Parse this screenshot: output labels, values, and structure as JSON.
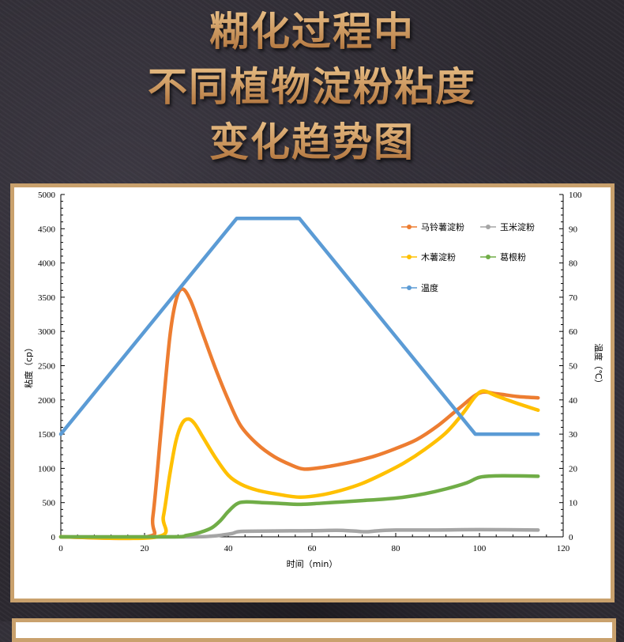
{
  "title": {
    "lines": [
      "糊化过程中",
      "不同植物淀粉粘度",
      "变化趋势图"
    ]
  },
  "chart_data": {
    "type": "line",
    "xlabel": "时间（min）",
    "ylabel": "粘度（cp）",
    "y2label": "温度（℃）",
    "xlim": [
      0,
      120
    ],
    "ylim": [
      0,
      5000
    ],
    "y2lim": [
      0,
      100
    ],
    "xticks": [
      0,
      20,
      40,
      60,
      80,
      100,
      120
    ],
    "yticks": [
      0,
      500,
      1000,
      1500,
      2000,
      2500,
      3000,
      3500,
      4000,
      4500,
      5000
    ],
    "y2ticks": [
      0,
      10,
      20,
      30,
      40,
      50,
      60,
      70,
      80,
      90,
      100
    ],
    "grid": false,
    "legend_placement": "top-right",
    "series": [
      {
        "name": "马铃薯淀粉",
        "color": "#ed7d31",
        "axis": "left",
        "x": [
          0,
          20.5,
          22,
          24,
          26,
          27.5,
          29,
          31,
          34,
          37,
          40,
          43,
          47,
          51,
          55,
          58,
          62,
          66,
          70,
          75,
          80,
          85,
          90,
          95,
          100,
          104,
          109,
          114
        ],
        "y": [
          0,
          0,
          300,
          1600,
          2900,
          3450,
          3620,
          3450,
          2950,
          2450,
          2000,
          1620,
          1350,
          1170,
          1050,
          990,
          1010,
          1050,
          1100,
          1180,
          1290,
          1420,
          1620,
          1870,
          2100,
          2090,
          2050,
          2030
        ]
      },
      {
        "name": "玉米淀粉",
        "color": "#a5a5a5",
        "axis": "left",
        "x": [
          0,
          30,
          36,
          39,
          41,
          43,
          50,
          60,
          66,
          70,
          73,
          76,
          80,
          90,
          100,
          114
        ],
        "y": [
          0,
          0,
          10,
          30,
          50,
          80,
          85,
          90,
          95,
          85,
          75,
          90,
          100,
          100,
          105,
          100
        ]
      },
      {
        "name": "木薯淀粉",
        "color": "#ffc000",
        "axis": "left",
        "x": [
          0,
          23,
          24.5,
          26,
          27.5,
          29,
          30.5,
          32,
          34,
          37,
          40,
          43,
          47,
          52,
          57,
          62,
          67,
          72,
          77,
          82,
          87,
          92,
          96,
          99,
          101,
          104,
          109,
          114
        ],
        "y": [
          0,
          0,
          300,
          900,
          1400,
          1660,
          1720,
          1650,
          1450,
          1150,
          900,
          770,
          680,
          620,
          580,
          610,
          680,
          780,
          920,
          1080,
          1280,
          1520,
          1800,
          2050,
          2130,
          2060,
          1950,
          1850
        ]
      },
      {
        "name": "葛根粉",
        "color": "#70ad47",
        "axis": "left",
        "x": [
          0,
          26,
          30,
          33,
          36,
          38,
          40,
          42,
          44,
          48,
          52,
          57,
          62,
          67,
          72,
          77,
          82,
          87,
          92,
          97,
          100,
          104,
          109,
          114
        ],
        "y": [
          0,
          0,
          20,
          60,
          130,
          230,
          370,
          480,
          510,
          500,
          490,
          475,
          490,
          510,
          530,
          550,
          580,
          630,
          700,
          790,
          870,
          890,
          890,
          885
        ]
      },
      {
        "name": "温度",
        "color": "#5b9bd5",
        "axis": "right",
        "x": [
          0,
          42,
          57,
          99,
          114
        ],
        "y": [
          30,
          93,
          93,
          30,
          30
        ]
      }
    ]
  }
}
